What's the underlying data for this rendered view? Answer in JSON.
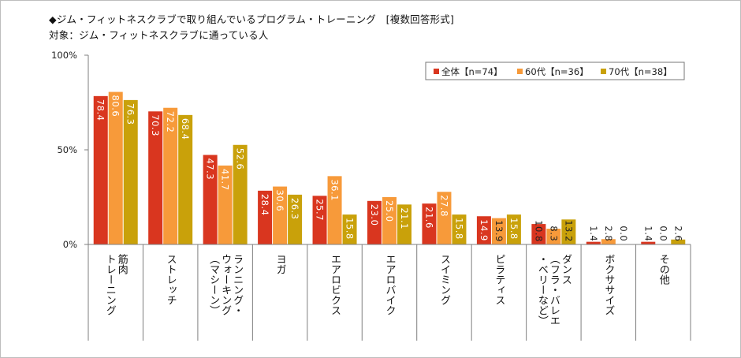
{
  "header": {
    "title_line1": "◆ジム・フィットネスクラブで取り組んでいるプログラム・トレーニング　[複数回答形式]",
    "title_line2": "対象：ジム・フィットネスクラブに通っている人"
  },
  "colors": {
    "series_total": "#d9361f",
    "series_60s": "#f79a3a",
    "series_70s": "#c9a10a",
    "axis": "#7f7f7f",
    "label_text_on_bar": "#ffffff",
    "label_text_outside": "#222222"
  },
  "chart_data": {
    "type": "bar",
    "title": "ジム・フィットネスクラブで取り組んでいるプログラム・トレーニング",
    "ylim": [
      0,
      100
    ],
    "yticks": [
      "0%",
      "50%",
      "100%"
    ],
    "ytick_values": [
      0,
      50,
      100
    ],
    "legend_position": "top-right",
    "categories": [
      {
        "lines": [
          "筋肉",
          "トレーニング"
        ]
      },
      {
        "lines": [
          "ストレッチ"
        ]
      },
      {
        "lines": [
          "ランニング・",
          "ウォーキング",
          "（マシーン）"
        ]
      },
      {
        "lines": [
          "ヨガ"
        ]
      },
      {
        "lines": [
          "エアロビクス"
        ]
      },
      {
        "lines": [
          "エアロバイク"
        ]
      },
      {
        "lines": [
          "スイミング"
        ]
      },
      {
        "lines": [
          "ピラティス"
        ]
      },
      {
        "lines": [
          "ダンス",
          "（フラ・バレエ",
          "・ベリーなど）"
        ]
      },
      {
        "lines": [
          "ボクササイズ"
        ]
      },
      {
        "lines": [
          "その他"
        ]
      }
    ],
    "series": [
      {
        "name": "全体【n=74】",
        "values": [
          78.4,
          70.3,
          47.3,
          28.4,
          25.7,
          23.0,
          21.6,
          14.9,
          10.8,
          1.4,
          1.4
        ],
        "labels": [
          "78.4",
          "70.3",
          "47.3",
          "28.4",
          "25.7",
          "23.0",
          "21.6",
          "14.9",
          "10.8",
          "1.4",
          "1.4"
        ]
      },
      {
        "name": "60代【n=36】",
        "values": [
          80.6,
          72.2,
          41.7,
          30.6,
          36.1,
          25.0,
          27.8,
          13.9,
          8.3,
          2.8,
          0.0
        ],
        "labels": [
          "80.6",
          "72.2",
          "41.7",
          "30.6",
          "36.1",
          "25.0",
          "27.8",
          "13.9",
          "8.3",
          "2.8",
          "0.0"
        ]
      },
      {
        "name": "70代【n=38】",
        "values": [
          76.3,
          68.4,
          52.6,
          26.3,
          15.8,
          21.1,
          15.8,
          15.8,
          13.2,
          0.0,
          2.6
        ],
        "labels": [
          "76.3",
          "68.4",
          "52.6",
          "26.3",
          "15.8",
          "21.1",
          "15.8",
          "15.8",
          "13.2",
          "0.0",
          "2.6"
        ]
      }
    ]
  }
}
